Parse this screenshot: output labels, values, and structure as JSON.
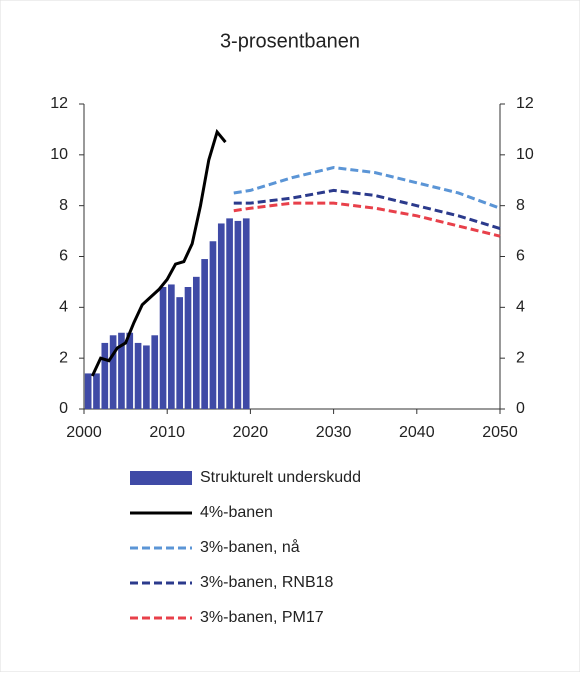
{
  "chart_data": {
    "type": "bar_line",
    "title": "3-prosentbanen",
    "xlim": [
      2000,
      2050
    ],
    "xticks": [
      2000,
      2010,
      2020,
      2030,
      2040,
      2050
    ],
    "ylim": [
      0,
      12
    ],
    "yticks": [
      0,
      2,
      4,
      6,
      8,
      10,
      12
    ],
    "y2lim": [
      0,
      12
    ],
    "y2ticks": [
      0,
      2,
      4,
      6,
      8,
      10,
      12
    ],
    "series": [
      {
        "name": "Strukturelt underskudd",
        "kind": "bar",
        "color": "#3f4aa6",
        "x": [
          2000,
          2001,
          2002,
          2003,
          2004,
          2005,
          2006,
          2007,
          2008,
          2009,
          2010,
          2011,
          2012,
          2013,
          2014,
          2015,
          2016,
          2017,
          2018,
          2019
        ],
        "values": [
          1.4,
          1.4,
          2.6,
          2.9,
          3.0,
          3.0,
          2.6,
          2.5,
          2.9,
          4.8,
          4.9,
          4.4,
          4.8,
          5.2,
          5.9,
          6.6,
          7.3,
          7.5,
          7.4,
          7.5
        ]
      },
      {
        "name": "4%-banen",
        "kind": "line",
        "color": "#000000",
        "x": [
          2001,
          2002,
          2003,
          2004,
          2005,
          2006,
          2007,
          2008,
          2009,
          2010,
          2011,
          2012,
          2013,
          2014,
          2015,
          2016,
          2017
        ],
        "values": [
          1.3,
          2.0,
          1.9,
          2.4,
          2.6,
          3.4,
          4.1,
          4.4,
          4.7,
          5.1,
          5.7,
          5.8,
          6.5,
          8.0,
          9.8,
          10.9,
          10.5
        ]
      },
      {
        "name": "3%-banen, nå",
        "kind": "dashed",
        "color": "#5b95d6",
        "x": [
          2018,
          2020,
          2025,
          2030,
          2035,
          2040,
          2045,
          2050
        ],
        "values": [
          8.5,
          8.6,
          9.1,
          9.5,
          9.3,
          8.9,
          8.5,
          7.9
        ]
      },
      {
        "name": "3%-banen, RNB18",
        "kind": "dashed",
        "color": "#2b3a8c",
        "x": [
          2018,
          2020,
          2025,
          2030,
          2035,
          2040,
          2045,
          2050
        ],
        "values": [
          8.1,
          8.1,
          8.3,
          8.6,
          8.4,
          8.0,
          7.6,
          7.1
        ]
      },
      {
        "name": "3%-banen, PM17",
        "kind": "dashed",
        "color": "#e8404a",
        "x": [
          2018,
          2020,
          2025,
          2030,
          2035,
          2040,
          2045,
          2050
        ],
        "values": [
          7.8,
          7.9,
          8.1,
          8.1,
          7.9,
          7.6,
          7.2,
          6.8
        ]
      }
    ]
  }
}
